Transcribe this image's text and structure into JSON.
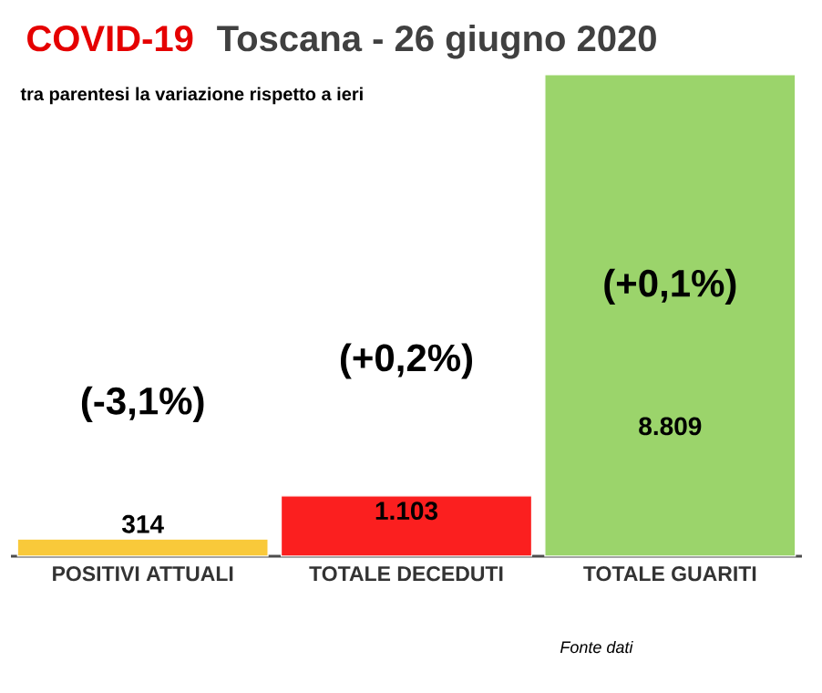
{
  "chart_data": {
    "type": "bar",
    "title": "COVID-19",
    "subtitle": "Toscana - 26 giugno 2020",
    "categories": [
      "POSITIVI ATTUALI",
      "TOTALE DECEDUTI",
      "TOTALE GUARITI"
    ],
    "values": [
      314,
      1103,
      8809
    ],
    "colors": [
      "#f9c93a",
      "#fb1f1f",
      "#9bd46b"
    ],
    "value_labels": [
      "314",
      "1.103",
      "8.809"
    ],
    "annotations": [
      "tra parentesi la variazione rispetto a ieri",
      "(-3,1%)",
      "(+0,2%)",
      "(+0,1%)",
      "Fonte dati"
    ]
  }
}
